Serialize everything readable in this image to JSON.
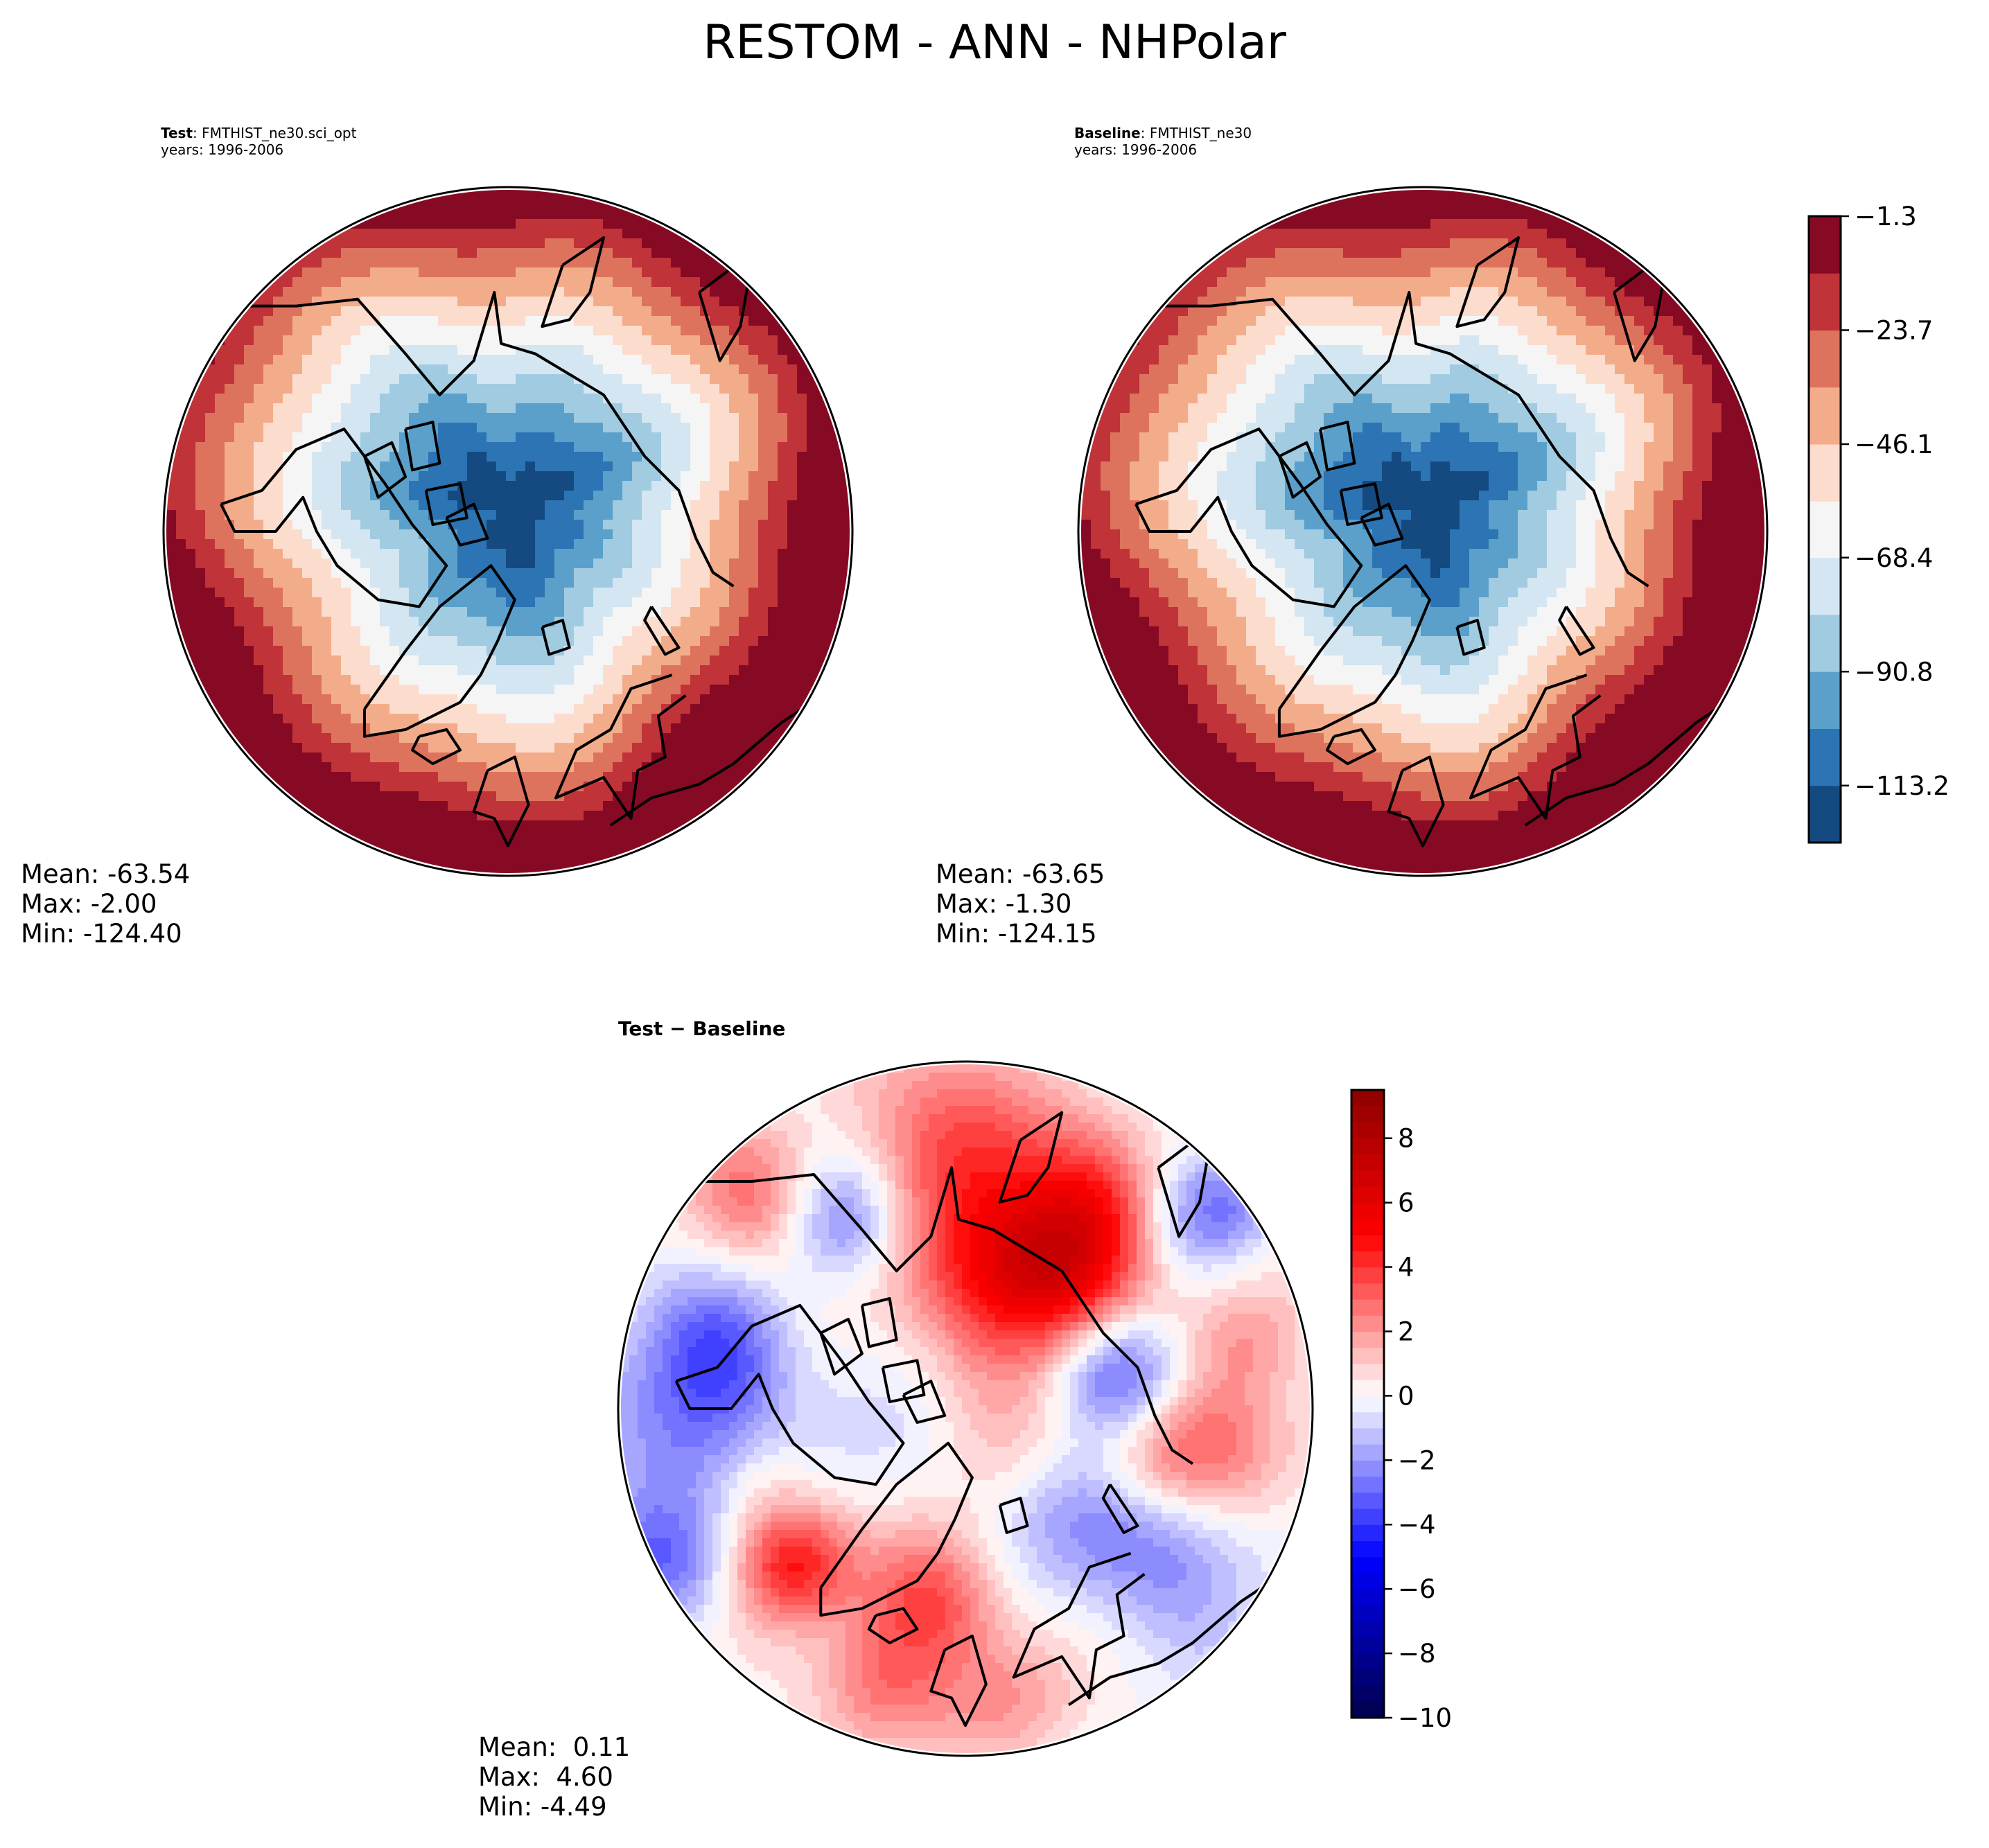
{
  "figure": {
    "suptitle": "RESTOM - ANN - NHPolar"
  },
  "chart_data": [
    {
      "type": "heatmap",
      "projection": "north-polar-stereographic",
      "panel": "test",
      "title_bold": "Test",
      "title_rest": ": FMTHIST_ne30.sci_opt",
      "subtitle": "years: 1996-2006",
      "stats": {
        "mean_label": "Mean:",
        "mean": "-63.54",
        "max_label": "Max:",
        "max": "-2.00",
        "min_label": "Min:",
        "min": "-124.40"
      },
      "field_description": "Strongly negative (~-124) over central Arctic / Greenland, increasing radially to ~-2 near 50N edge",
      "colorbar": "shared-levels"
    },
    {
      "type": "heatmap",
      "projection": "north-polar-stereographic",
      "panel": "baseline",
      "title_bold": "Baseline",
      "title_rest": ": FMTHIST_ne30",
      "subtitle": "years: 1996-2006",
      "stats": {
        "mean_label": "Mean:",
        "mean": "-63.65",
        "max_label": "Max:",
        "max": "-1.30",
        "min_label": "Min:",
        "min": "-124.15"
      },
      "colorbar": {
        "levels": [
          -124.4,
          -113.2,
          -102.0,
          -90.8,
          -79.6,
          -68.4,
          -57.3,
          -46.1,
          -34.9,
          -23.7,
          -12.5,
          -1.3
        ],
        "tick_values": [
          -113.2,
          -90.8,
          -68.4,
          -46.1,
          -23.7,
          -1.3
        ],
        "tick_labels": [
          "−113.2",
          "−90.8",
          "−68.4",
          "−46.1",
          "−23.7",
          "−1.3"
        ],
        "colors": [
          "#144a80",
          "#2c74b4",
          "#5aa0ca",
          "#a0cbe1",
          "#d3e6f1",
          "#f5f5f5",
          "#fcdccd",
          "#f3ac8a",
          "#de735d",
          "#c03339",
          "#870a24"
        ],
        "range": [
          -124.4,
          -1.3
        ]
      }
    },
    {
      "type": "heatmap",
      "projection": "north-polar-stereographic",
      "panel": "difference",
      "title": "Test − Baseline",
      "stats": {
        "mean_label": "Mean:",
        "mean": " 0.11",
        "max_label": "Max:",
        "max": " 4.60",
        "min_label": "Min:",
        "min": "-4.49"
      },
      "colorbar": {
        "range": [
          -10,
          9.5
        ],
        "tick_values": [
          -10,
          -8,
          -6,
          -4,
          -2,
          0,
          2,
          4,
          6,
          8
        ],
        "tick_labels": [
          "−10",
          "−8",
          "−6",
          "−4",
          "−2",
          "0",
          "2",
          "4",
          "6",
          "8"
        ],
        "colormap": "seismic",
        "n_bands": 39
      }
    }
  ]
}
